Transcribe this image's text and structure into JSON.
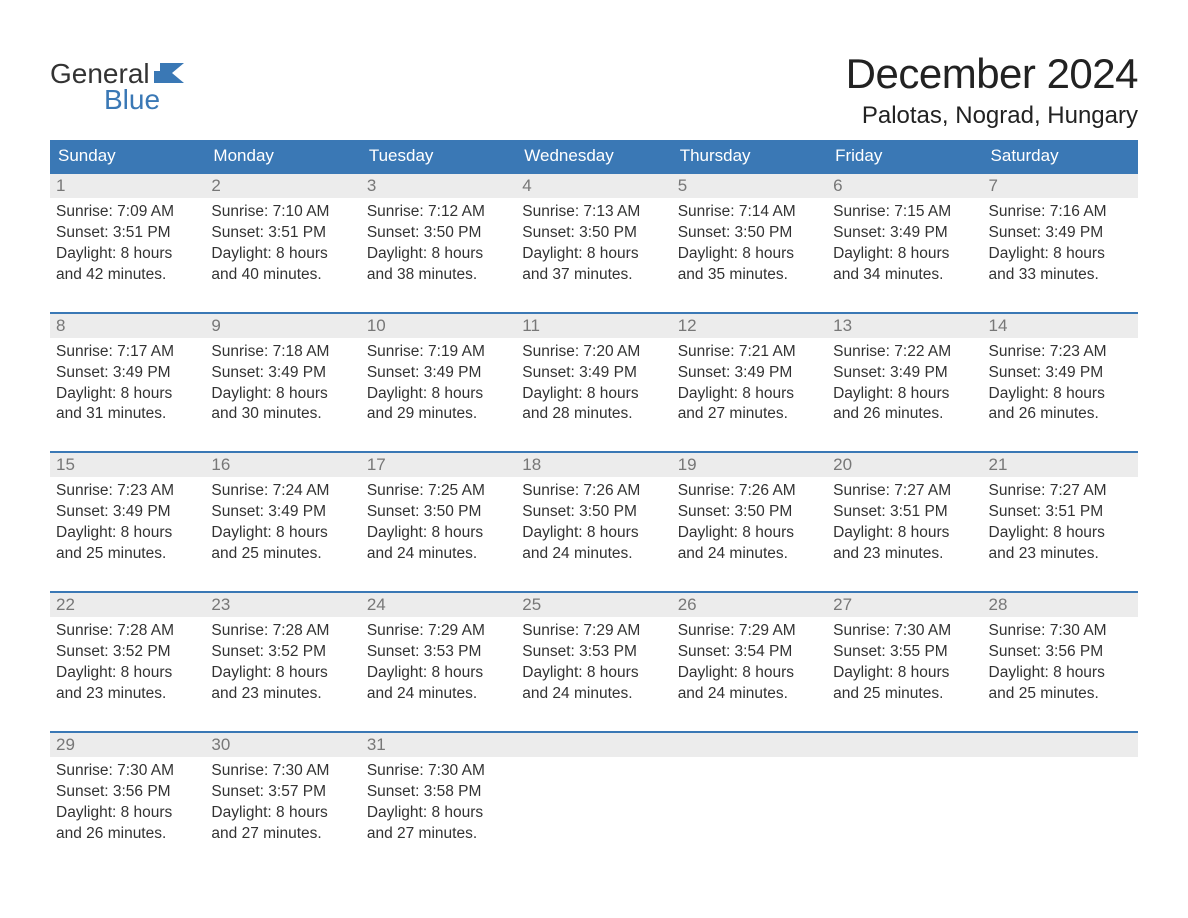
{
  "brand": {
    "name_a": "General",
    "name_b": "Blue",
    "color": "#3a78b5"
  },
  "title": {
    "month": "December 2024",
    "location": "Palotas, Nograd, Hungary"
  },
  "colors": {
    "header_bg": "#3a78b5",
    "header_text": "#ffffff",
    "daynum_bg": "#ececec",
    "daynum_text": "#777777",
    "body_text": "#333333",
    "rule": "#3a78b5"
  },
  "fonts": {
    "title_pt": 42,
    "location_pt": 24,
    "dow_pt": 17,
    "body_pt": 15.5
  },
  "dow": [
    "Sunday",
    "Monday",
    "Tuesday",
    "Wednesday",
    "Thursday",
    "Friday",
    "Saturday"
  ],
  "weeks": [
    [
      {
        "n": "1",
        "sr": "Sunrise: 7:09 AM",
        "ss": "Sunset: 3:51 PM",
        "d1": "Daylight: 8 hours",
        "d2": "and 42 minutes."
      },
      {
        "n": "2",
        "sr": "Sunrise: 7:10 AM",
        "ss": "Sunset: 3:51 PM",
        "d1": "Daylight: 8 hours",
        "d2": "and 40 minutes."
      },
      {
        "n": "3",
        "sr": "Sunrise: 7:12 AM",
        "ss": "Sunset: 3:50 PM",
        "d1": "Daylight: 8 hours",
        "d2": "and 38 minutes."
      },
      {
        "n": "4",
        "sr": "Sunrise: 7:13 AM",
        "ss": "Sunset: 3:50 PM",
        "d1": "Daylight: 8 hours",
        "d2": "and 37 minutes."
      },
      {
        "n": "5",
        "sr": "Sunrise: 7:14 AM",
        "ss": "Sunset: 3:50 PM",
        "d1": "Daylight: 8 hours",
        "d2": "and 35 minutes."
      },
      {
        "n": "6",
        "sr": "Sunrise: 7:15 AM",
        "ss": "Sunset: 3:49 PM",
        "d1": "Daylight: 8 hours",
        "d2": "and 34 minutes."
      },
      {
        "n": "7",
        "sr": "Sunrise: 7:16 AM",
        "ss": "Sunset: 3:49 PM",
        "d1": "Daylight: 8 hours",
        "d2": "and 33 minutes."
      }
    ],
    [
      {
        "n": "8",
        "sr": "Sunrise: 7:17 AM",
        "ss": "Sunset: 3:49 PM",
        "d1": "Daylight: 8 hours",
        "d2": "and 31 minutes."
      },
      {
        "n": "9",
        "sr": "Sunrise: 7:18 AM",
        "ss": "Sunset: 3:49 PM",
        "d1": "Daylight: 8 hours",
        "d2": "and 30 minutes."
      },
      {
        "n": "10",
        "sr": "Sunrise: 7:19 AM",
        "ss": "Sunset: 3:49 PM",
        "d1": "Daylight: 8 hours",
        "d2": "and 29 minutes."
      },
      {
        "n": "11",
        "sr": "Sunrise: 7:20 AM",
        "ss": "Sunset: 3:49 PM",
        "d1": "Daylight: 8 hours",
        "d2": "and 28 minutes."
      },
      {
        "n": "12",
        "sr": "Sunrise: 7:21 AM",
        "ss": "Sunset: 3:49 PM",
        "d1": "Daylight: 8 hours",
        "d2": "and 27 minutes."
      },
      {
        "n": "13",
        "sr": "Sunrise: 7:22 AM",
        "ss": "Sunset: 3:49 PM",
        "d1": "Daylight: 8 hours",
        "d2": "and 26 minutes."
      },
      {
        "n": "14",
        "sr": "Sunrise: 7:23 AM",
        "ss": "Sunset: 3:49 PM",
        "d1": "Daylight: 8 hours",
        "d2": "and 26 minutes."
      }
    ],
    [
      {
        "n": "15",
        "sr": "Sunrise: 7:23 AM",
        "ss": "Sunset: 3:49 PM",
        "d1": "Daylight: 8 hours",
        "d2": "and 25 minutes."
      },
      {
        "n": "16",
        "sr": "Sunrise: 7:24 AM",
        "ss": "Sunset: 3:49 PM",
        "d1": "Daylight: 8 hours",
        "d2": "and 25 minutes."
      },
      {
        "n": "17",
        "sr": "Sunrise: 7:25 AM",
        "ss": "Sunset: 3:50 PM",
        "d1": "Daylight: 8 hours",
        "d2": "and 24 minutes."
      },
      {
        "n": "18",
        "sr": "Sunrise: 7:26 AM",
        "ss": "Sunset: 3:50 PM",
        "d1": "Daylight: 8 hours",
        "d2": "and 24 minutes."
      },
      {
        "n": "19",
        "sr": "Sunrise: 7:26 AM",
        "ss": "Sunset: 3:50 PM",
        "d1": "Daylight: 8 hours",
        "d2": "and 24 minutes."
      },
      {
        "n": "20",
        "sr": "Sunrise: 7:27 AM",
        "ss": "Sunset: 3:51 PM",
        "d1": "Daylight: 8 hours",
        "d2": "and 23 minutes."
      },
      {
        "n": "21",
        "sr": "Sunrise: 7:27 AM",
        "ss": "Sunset: 3:51 PM",
        "d1": "Daylight: 8 hours",
        "d2": "and 23 minutes."
      }
    ],
    [
      {
        "n": "22",
        "sr": "Sunrise: 7:28 AM",
        "ss": "Sunset: 3:52 PM",
        "d1": "Daylight: 8 hours",
        "d2": "and 23 minutes."
      },
      {
        "n": "23",
        "sr": "Sunrise: 7:28 AM",
        "ss": "Sunset: 3:52 PM",
        "d1": "Daylight: 8 hours",
        "d2": "and 23 minutes."
      },
      {
        "n": "24",
        "sr": "Sunrise: 7:29 AM",
        "ss": "Sunset: 3:53 PM",
        "d1": "Daylight: 8 hours",
        "d2": "and 24 minutes."
      },
      {
        "n": "25",
        "sr": "Sunrise: 7:29 AM",
        "ss": "Sunset: 3:53 PM",
        "d1": "Daylight: 8 hours",
        "d2": "and 24 minutes."
      },
      {
        "n": "26",
        "sr": "Sunrise: 7:29 AM",
        "ss": "Sunset: 3:54 PM",
        "d1": "Daylight: 8 hours",
        "d2": "and 24 minutes."
      },
      {
        "n": "27",
        "sr": "Sunrise: 7:30 AM",
        "ss": "Sunset: 3:55 PM",
        "d1": "Daylight: 8 hours",
        "d2": "and 25 minutes."
      },
      {
        "n": "28",
        "sr": "Sunrise: 7:30 AM",
        "ss": "Sunset: 3:56 PM",
        "d1": "Daylight: 8 hours",
        "d2": "and 25 minutes."
      }
    ],
    [
      {
        "n": "29",
        "sr": "Sunrise: 7:30 AM",
        "ss": "Sunset: 3:56 PM",
        "d1": "Daylight: 8 hours",
        "d2": "and 26 minutes."
      },
      {
        "n": "30",
        "sr": "Sunrise: 7:30 AM",
        "ss": "Sunset: 3:57 PM",
        "d1": "Daylight: 8 hours",
        "d2": "and 27 minutes."
      },
      {
        "n": "31",
        "sr": "Sunrise: 7:30 AM",
        "ss": "Sunset: 3:58 PM",
        "d1": "Daylight: 8 hours",
        "d2": "and 27 minutes."
      },
      {
        "empty": true
      },
      {
        "empty": true
      },
      {
        "empty": true
      },
      {
        "empty": true
      }
    ]
  ]
}
